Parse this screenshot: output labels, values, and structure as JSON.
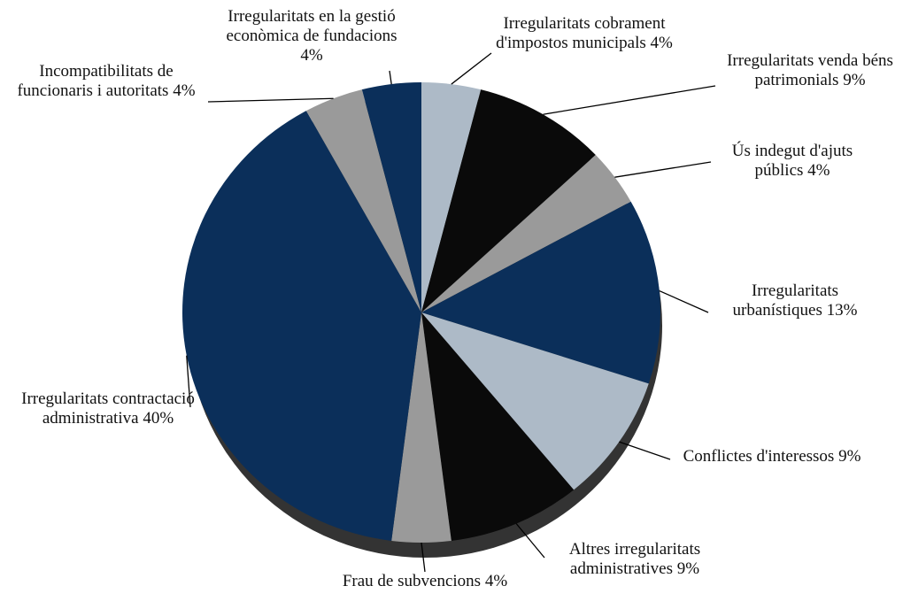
{
  "chart_data": {
    "type": "pie",
    "categories": [
      "Irregularitats cobrament d'impostos municipals",
      "Irregularitats venda béns patrimonials",
      "Ús indegut d'ajuts públics",
      "Irregularitats urbanístiques",
      "Conflictes d'interessos",
      "Altres irregularitats administratives",
      "Frau de subvencions",
      "Irregularitats contractació administrativa",
      "Incompatibilitats de funcionaris i autoritats",
      "Irregularitats en la gestió econòmica de fundacions"
    ],
    "values": [
      4,
      9,
      4,
      13,
      9,
      9,
      4,
      40,
      4,
      4
    ],
    "value_labels": [
      "4%",
      "9%",
      "4%",
      "13%",
      "9%",
      "9%",
      "4%",
      "40%",
      "4%",
      "4%"
    ],
    "colors": [
      "#adbac7",
      "#0a0a0a",
      "#9a9a9a",
      "#0b2f5a",
      "#adbac7",
      "#0a0a0a",
      "#9a9a9a",
      "#0b2f5a",
      "#9a9a9a",
      "#0b2f5a"
    ]
  }
}
